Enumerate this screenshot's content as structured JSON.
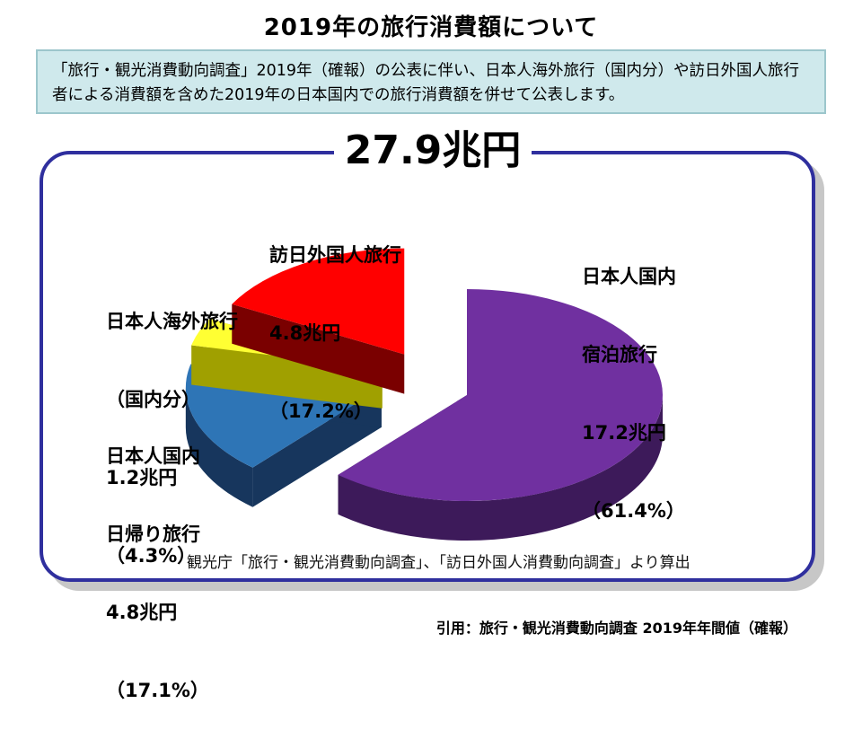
{
  "title": "2019年の旅行消費額について",
  "notice": "「旅行・観光消費動向調査」2019年（確報）の公表に伴い、日本人海外旅行（国内分）や訪日外国人旅行者による消費額を含めた2019年の日本国内での旅行消費額を併せて公表します。",
  "chart_data": {
    "type": "pie",
    "title": "27.9兆円",
    "unit": "兆円",
    "slices": [
      {
        "name_lines": [
          "日本人国内",
          "宿泊旅行"
        ],
        "value": 17.2,
        "value_label": "17.2兆円",
        "percent": 61.4,
        "percent_label": "（61.4%）",
        "color": "#7030a0",
        "side_color": "#3d1a5a",
        "exploded": false
      },
      {
        "name_lines": [
          "日本人国内",
          "日帰り旅行"
        ],
        "value": 4.8,
        "value_label": "4.8兆円",
        "percent": 17.1,
        "percent_label": "（17.1%）",
        "color": "#2e75b6",
        "side_color": "#17365d",
        "exploded": true
      },
      {
        "name_lines": [
          "日本人海外旅行",
          "（国内分）"
        ],
        "value": 1.2,
        "value_label": "1.2兆円",
        "percent": 4.3,
        "percent_label": "（4.3%）",
        "color": "#ffff33",
        "side_color": "#a0a000",
        "exploded": true
      },
      {
        "name_lines": [
          "訪日外国人旅行"
        ],
        "value": 4.8,
        "value_label": "4.8兆円",
        "percent": 17.2,
        "percent_label": "（17.2%）",
        "color": "#ff0000",
        "side_color": "#7a0000",
        "exploded": true
      }
    ]
  },
  "source_note": "観光庁「旅行・観光消費動向調査」、「訪日外国人消費動向調査」より算出",
  "citation": "引用：旅行・観光消費動向調査 2019年年間値（確報）"
}
